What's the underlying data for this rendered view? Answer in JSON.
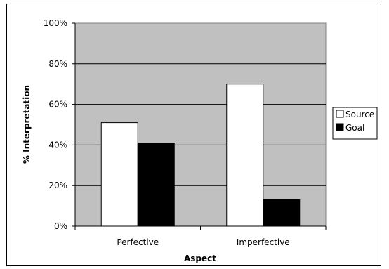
{
  "chart_data": {
    "type": "bar",
    "categories": [
      "Perfective",
      "Imperfective"
    ],
    "series": [
      {
        "name": "Source",
        "values": [
          51,
          70
        ],
        "color": "#ffffff"
      },
      {
        "name": "Goal",
        "values": [
          41,
          13
        ],
        "color": "#000000"
      }
    ],
    "xlabel": "Aspect",
    "ylabel": "% Interpretation",
    "ylim": [
      0,
      100
    ],
    "yticks": [
      "0%",
      "20%",
      "40%",
      "60%",
      "80%",
      "100%"
    ],
    "grid": true,
    "plot_background": "#c0c0c0",
    "legend_position": "right"
  }
}
